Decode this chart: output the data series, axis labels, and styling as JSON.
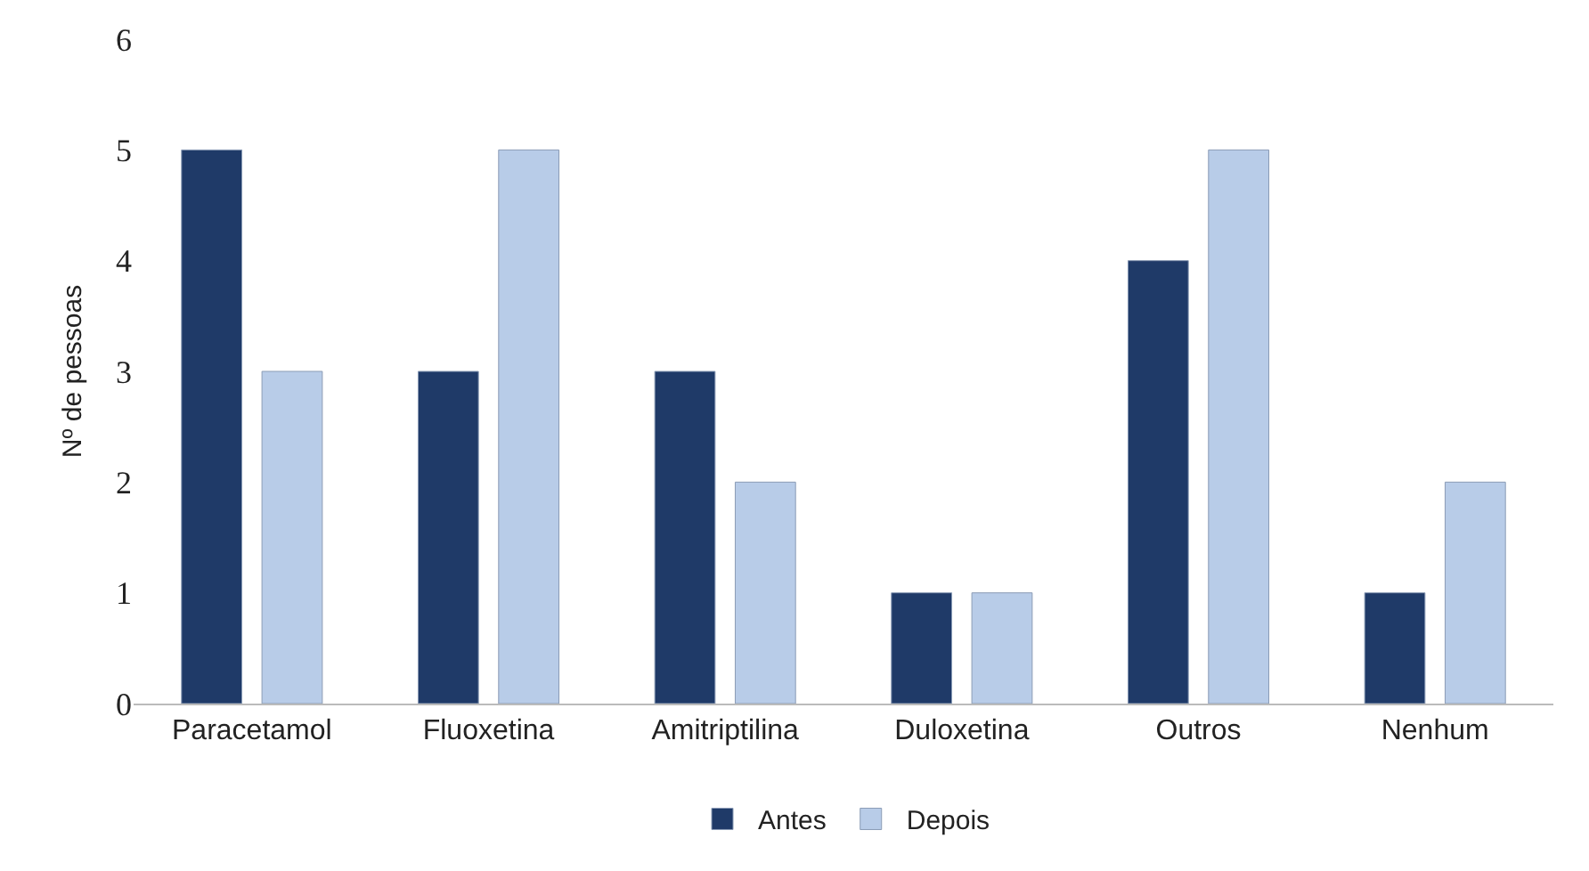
{
  "chart_data": {
    "type": "bar",
    "ylabel": "Nº de pessoas",
    "categories": [
      "Paracetamol",
      "Fluoxetina",
      "Amitriptilina",
      "Duloxetina",
      "Outros",
      "Nenhum"
    ],
    "series": [
      {
        "name": "Antes",
        "color": "#1f3a68",
        "values": [
          5,
          3,
          3,
          1,
          4,
          1
        ]
      },
      {
        "name": "Depois",
        "color": "#b8cce8",
        "values": [
          3,
          5,
          2,
          1,
          5,
          2
        ]
      }
    ],
    "ylim": [
      0,
      6
    ],
    "yticks": [
      0,
      1,
      2,
      3,
      4,
      5,
      6
    ],
    "legend": "bottom"
  }
}
